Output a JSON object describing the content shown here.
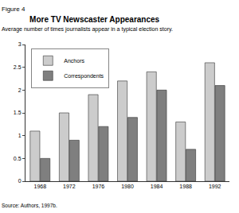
{
  "chart_data": {
    "type": "bar",
    "title": "More TV Newscaster Appearances",
    "subtitle": "Average number of times journalists appear in a typical election story.",
    "annotations": [
      "Figure 4",
      "Source: Authors, 1997b."
    ],
    "categories": [
      "1968",
      "1972",
      "1976",
      "1980",
      "1984",
      "1988",
      "1992"
    ],
    "series": [
      {
        "name": "Anchors",
        "color": "#cccccc",
        "values": [
          1.1,
          1.5,
          1.9,
          2.2,
          2.4,
          1.3,
          2.6
        ]
      },
      {
        "name": "Correspondents",
        "color": "#7f7f7f",
        "values": [
          0.5,
          0.9,
          1.2,
          1.4,
          2.0,
          0.7,
          2.1
        ]
      }
    ],
    "ylim": [
      0,
      3
    ],
    "yticks": [
      0,
      0.5,
      1,
      1.5,
      2,
      2.5,
      3
    ],
    "grid": false,
    "legend": "top-left"
  }
}
